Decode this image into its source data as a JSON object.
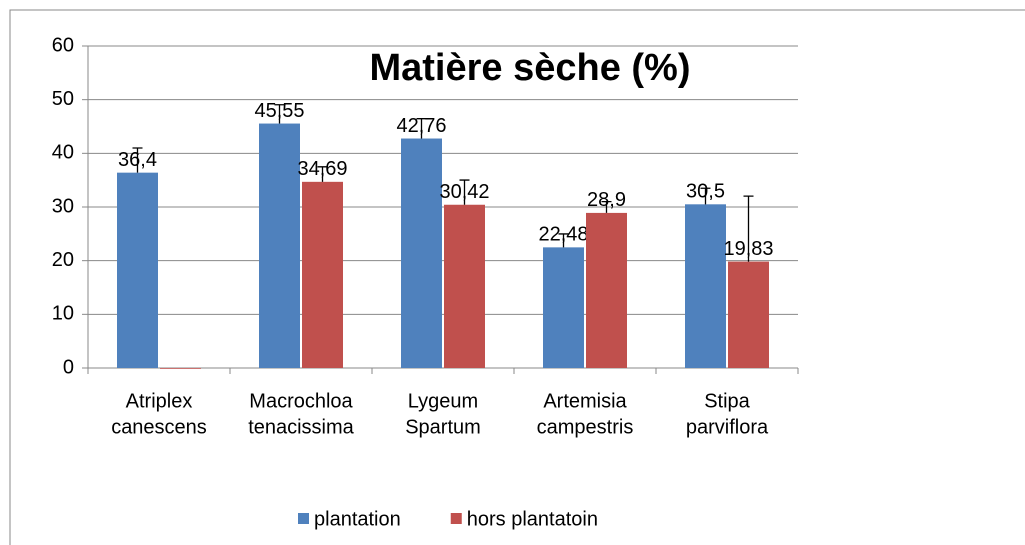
{
  "chart_data": {
    "type": "bar",
    "title": "Matière sèche (%)",
    "categories": [
      [
        "Atriplex",
        "canescens"
      ],
      [
        "Macrochloa",
        "tenacissima"
      ],
      [
        "Lygeum",
        "Spartum"
      ],
      [
        "Artemisia",
        "campestris"
      ],
      [
        "Stipa",
        "parviflora"
      ]
    ],
    "series": [
      {
        "name": "plantation",
        "color": "#4f81bd",
        "values": [
          36.4,
          45.55,
          42.76,
          22.48,
          30.5
        ],
        "value_labels": [
          "36,4",
          "45,55",
          "42,76",
          "22,48",
          "30,5"
        ],
        "errors": [
          4.6,
          3.5,
          3.7,
          2.5,
          3
        ]
      },
      {
        "name": "hors plantatoin",
        "color": "#c0504d",
        "values": [
          0,
          34.69,
          30.42,
          28.9,
          19.83
        ],
        "value_labels": [
          null,
          "34,69",
          "30,42",
          "28,9",
          "19,83"
        ],
        "errors": [
          0,
          2.8,
          4.6,
          2.1,
          12.2
        ]
      }
    ],
    "ylim": [
      0,
      60
    ],
    "yticks": [
      0,
      10,
      20,
      30,
      40,
      50,
      60
    ],
    "grid": true,
    "legend": "bottom"
  }
}
